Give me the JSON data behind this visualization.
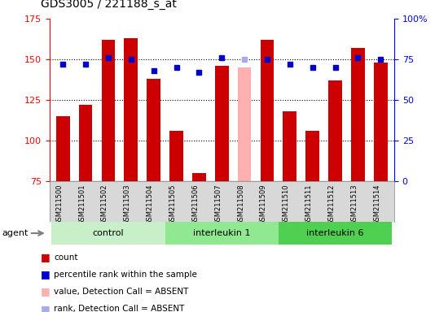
{
  "title": "GDS3005 / 221188_s_at",
  "samples": [
    "GSM211500",
    "GSM211501",
    "GSM211502",
    "GSM211503",
    "GSM211504",
    "GSM211505",
    "GSM211506",
    "GSM211507",
    "GSM211508",
    "GSM211509",
    "GSM211510",
    "GSM211511",
    "GSM211512",
    "GSM211513",
    "GSM211514"
  ],
  "counts": [
    115,
    122,
    162,
    163,
    138,
    106,
    80,
    146,
    145,
    162,
    118,
    106,
    137,
    157,
    148
  ],
  "absent_count": [
    null,
    null,
    null,
    null,
    null,
    null,
    null,
    null,
    145,
    null,
    null,
    null,
    null,
    null,
    null
  ],
  "percentile_ranks": [
    72,
    72,
    76,
    75,
    68,
    70,
    67,
    76,
    75,
    75,
    72,
    70,
    70,
    76,
    75
  ],
  "absent_rank": [
    null,
    null,
    null,
    null,
    null,
    null,
    null,
    null,
    75,
    null,
    null,
    null,
    null,
    null,
    null
  ],
  "groups": [
    {
      "label": "control",
      "start": 0,
      "end": 5,
      "color": "#c8f0c8"
    },
    {
      "label": "interleukin 1",
      "start": 5,
      "end": 10,
      "color": "#90e890"
    },
    {
      "label": "interleukin 6",
      "start": 10,
      "end": 15,
      "color": "#50d050"
    }
  ],
  "ylim_left": [
    75,
    175
  ],
  "ylim_right": [
    0,
    100
  ],
  "yticks_left": [
    75,
    100,
    125,
    150,
    175
  ],
  "yticks_right": [
    0,
    25,
    50,
    75,
    100
  ],
  "ytick_labels_right": [
    "0",
    "25",
    "50",
    "75",
    "100%"
  ],
  "bar_color": "#cc0000",
  "absent_bar_color": "#ffb0b0",
  "rank_color": "#0000cc",
  "absent_rank_color": "#aaaaee",
  "bg_plot": "#ffffff",
  "bg_label": "#d8d8d8"
}
